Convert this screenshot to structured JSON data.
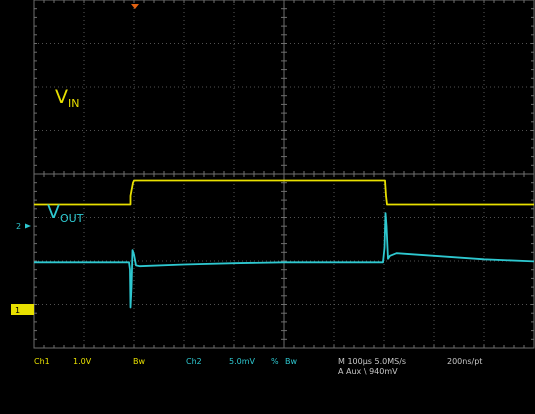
{
  "chart_data": {
    "type": "line",
    "instrument": "oscilloscope",
    "grid": true,
    "divisions": {
      "x": 10,
      "y": 8
    },
    "x_unit": "µs",
    "xlim": [
      0,
      1000
    ],
    "series": [
      {
        "name": "V_IN",
        "channel": "Ch1",
        "color": "#e8e000",
        "label_main": "V",
        "label_sub": "IN",
        "points": [
          [
            0,
            3.3
          ],
          [
            193,
            3.3
          ],
          [
            193,
            3.5
          ],
          [
            198,
            3.8
          ],
          [
            200,
            3.85
          ],
          [
            702,
            3.85
          ],
          [
            704,
            3.5
          ],
          [
            706,
            3.3
          ],
          [
            1000,
            3.3
          ]
        ]
      },
      {
        "name": "V_OUT",
        "channel": "Ch2",
        "color": "#2ec8d0",
        "label_main": "V",
        "label_sub": "OUT",
        "points": [
          [
            0,
            1.97
          ],
          [
            190,
            1.97
          ],
          [
            192,
            1.8
          ],
          [
            193,
            0.93
          ],
          [
            195,
            1.4
          ],
          [
            197,
            2.25
          ],
          [
            200,
            2.15
          ],
          [
            204,
            1.9
          ],
          [
            212,
            1.88
          ],
          [
            230,
            1.89
          ],
          [
            300,
            1.92
          ],
          [
            400,
            1.95
          ],
          [
            500,
            1.97
          ],
          [
            698,
            1.97
          ],
          [
            701,
            2.3
          ],
          [
            703,
            3.1
          ],
          [
            705,
            2.8
          ],
          [
            708,
            2.05
          ],
          [
            712,
            2.12
          ],
          [
            725,
            2.18
          ],
          [
            800,
            2.12
          ],
          [
            900,
            2.04
          ],
          [
            1000,
            1.99
          ]
        ]
      }
    ],
    "ground_markers": [
      {
        "label": "2",
        "level": 1.97,
        "color": "#2ec8d0"
      },
      {
        "label": "1",
        "level": 0.34,
        "color": "#e8e000"
      }
    ],
    "status": {
      "ch1": "Ch1",
      "ch1_scale": "1.0V",
      "ch1_bw": "Bw",
      "ch2": "Ch2",
      "ch2_scale": "5.0mV",
      "ch2_flag": "%",
      "ch2_bw": "Bw",
      "timebase": "M 100µs 5.0MS/s",
      "trigger": "A  Aux  \\  940mV",
      "resolution": "200ns/pt"
    }
  }
}
